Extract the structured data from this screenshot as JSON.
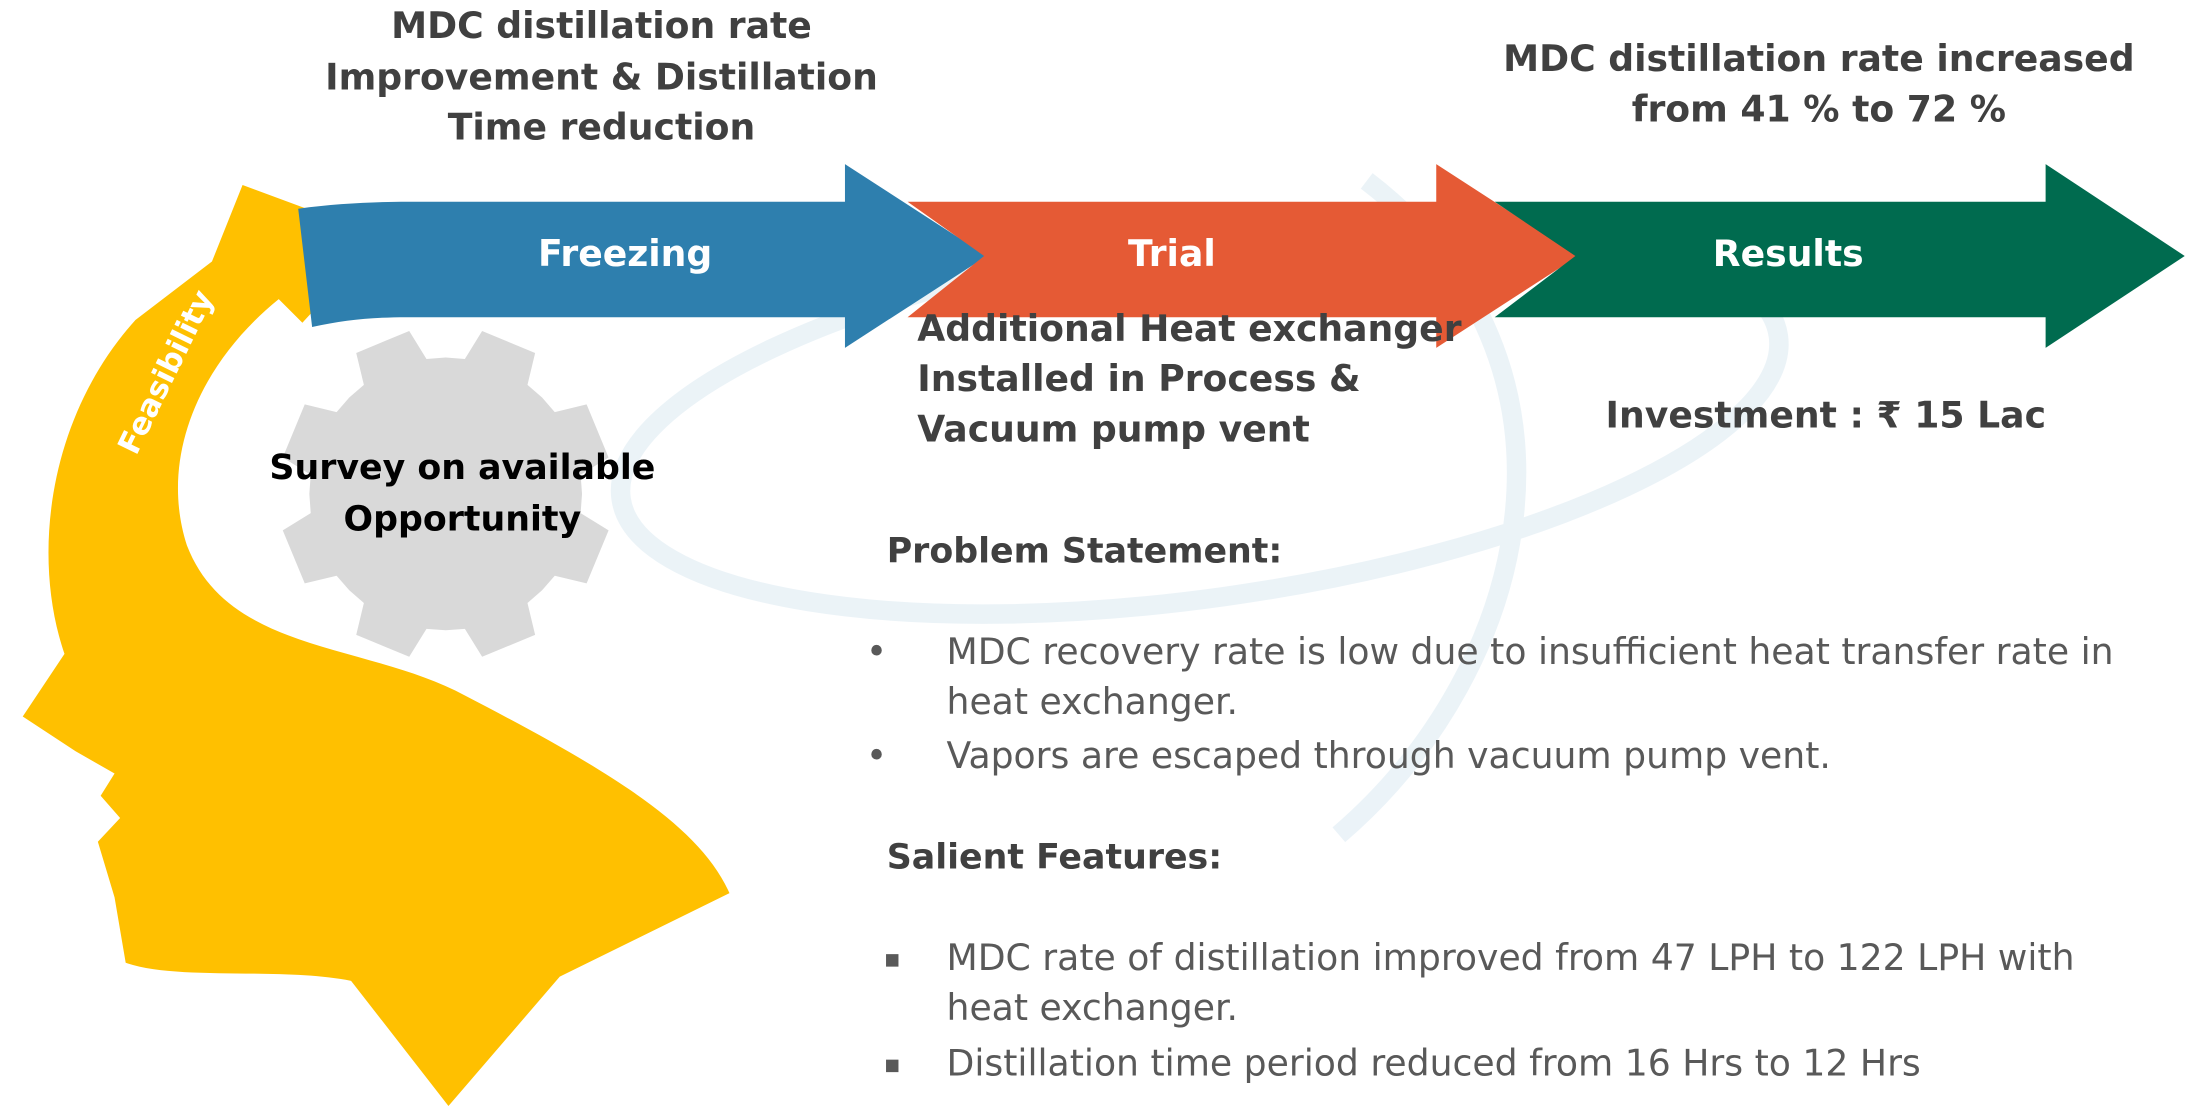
{
  "feasibility": {
    "label": "Feasibility",
    "gear_text": [
      "Survey on available",
      "Opportunity"
    ]
  },
  "steps": [
    {
      "label": "Freezing",
      "caption": [
        "MDC distillation rate",
        "Improvement & Distillation",
        "Time reduction"
      ]
    },
    {
      "label": "Trial",
      "caption": [
        "Additional Heat exchanger",
        "Installed in Process &",
        "Vacuum pump vent"
      ]
    },
    {
      "label": "Results",
      "caption": [
        "MDC distillation rate increased",
        "from 41 % to 72 %"
      ],
      "note": "Investment  : ₹ 15 Lac"
    }
  ],
  "problem_statement": {
    "heading": "Problem Statement:",
    "items": [
      [
        "MDC recovery rate is low due to insufficient heat transfer rate in",
        "heat exchanger."
      ],
      [
        "Vapors are escaped through vacuum pump vent."
      ]
    ]
  },
  "salient_features": {
    "heading": "Salient Features:",
    "items": [
      [
        "MDC rate of distillation improved from 47 LPH to 122 LPH with",
        "heat exchanger."
      ],
      [
        "Distillation time period reduced from 16 Hrs to 12 Hrs"
      ]
    ]
  }
}
